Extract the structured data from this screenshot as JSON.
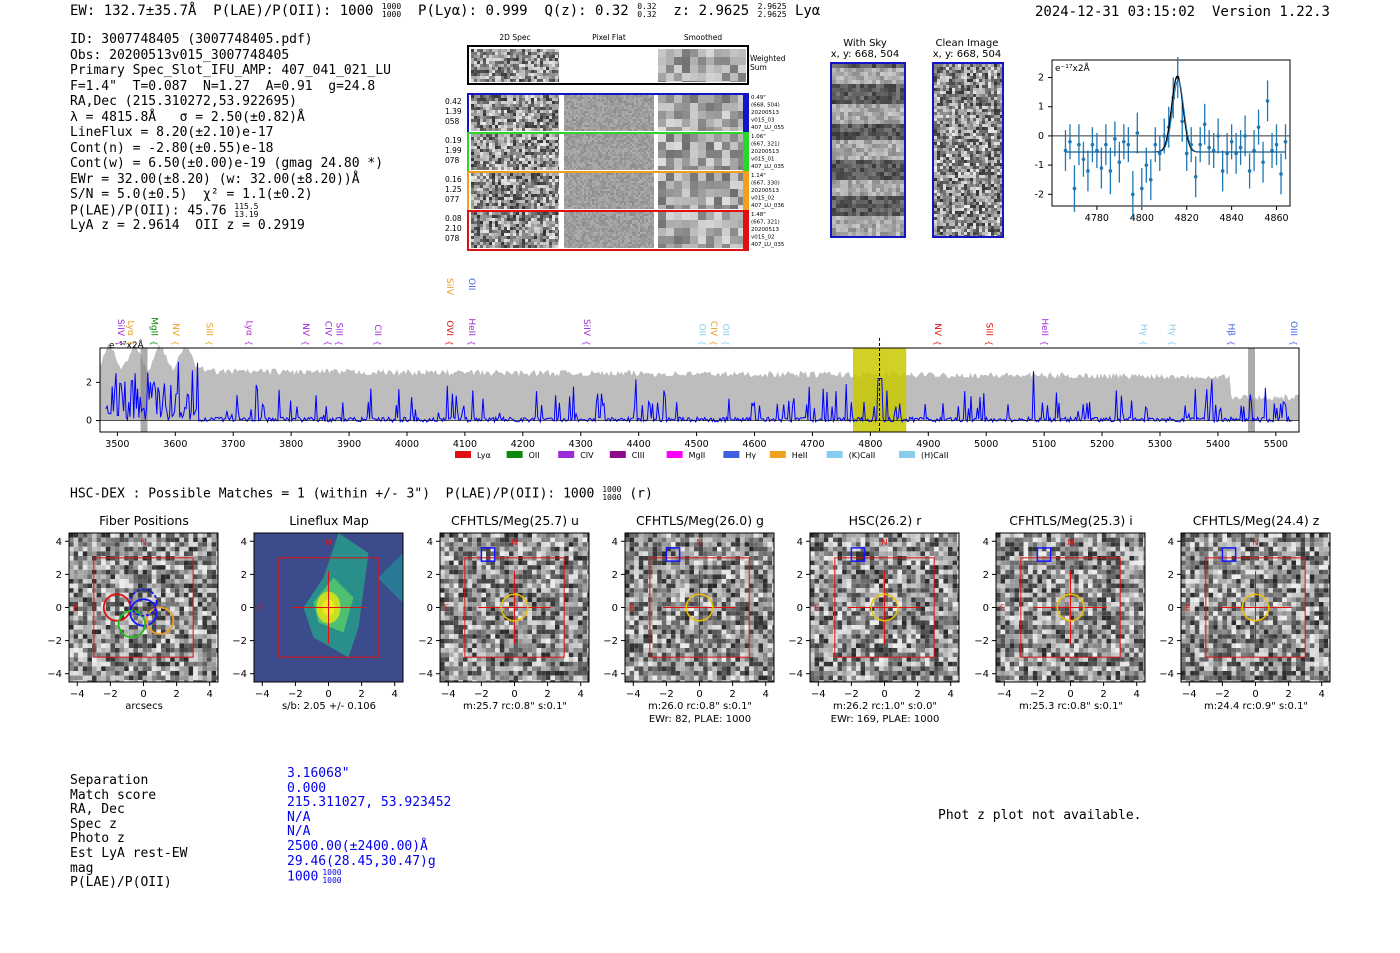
{
  "header": {
    "ew": "EW: 132.7±35.7Å",
    "plae_label": "P(LAE)/P(OII): 1000",
    "plae_hi": "1000",
    "plae_lo": "1000",
    "plya": "P(Lyα): 0.999",
    "qz_label": "Q(z): 0.32",
    "qz_hi": "0.32",
    "qz_lo": "0.32",
    "z_label": "z: 2.9625",
    "z_hi": "2.9625",
    "z_lo": "2.9625",
    "z_line": "Lyα",
    "timestamp": "2024-12-31 03:15:02",
    "version": "Version 1.22.3"
  },
  "info": {
    "id": "ID: 3007748405 (3007748405.pdf)",
    "obs": "Obs: 20200513v015_3007748405",
    "primary": "Primary Spec_Slot_IFU_AMP: 407_041_021_LU",
    "fiber": "F=1.4\"  T=0.087  N=1.27  A=0.91  g=24.8",
    "radec": "RA,Dec (215.310272,53.922695)",
    "lambda": "λ = 4815.8Å   σ = 2.50(±0.82)Å",
    "lineflux": "LineFlux = 8.20(±2.10)e-17",
    "contn": "Cont(n) = -2.80(±0.55)e-18",
    "contw": "Cont(w) = 6.50(±0.00)e-19 (gmag 24.80 *)",
    "ewr": "EWr = 32.00(±8.20) (w: 32.00(±8.20))Å",
    "sn": "S/N = 5.0(±0.5)  χ² = 1.1(±0.2)",
    "plae": "P(LAE)/P(OII): 45.76",
    "plae_hi": "115.5",
    "plae_lo": "13.19",
    "lyaz": "LyA z = 2.9614  OII z = 0.2919"
  },
  "spec2d": {
    "col_labels": [
      "2D Spec",
      "Pixel Flat",
      "Smoothed"
    ],
    "weighted_sum": "Weighted\nSum",
    "rows": [
      {
        "left": [
          "0.42",
          "1.39",
          "058"
        ],
        "right": [
          "0.49\"",
          "(668, 504)",
          "20200513",
          "v015_03",
          "407_LU_055"
        ],
        "color": "#1515c8"
      },
      {
        "left": [
          "0.19",
          "1.99",
          "078"
        ],
        "right": [
          "1.06\"",
          "(667, 321)",
          "20200513",
          "v015_01",
          "407_LU_035"
        ],
        "color": "#2bd62b"
      },
      {
        "left": [
          "0.16",
          "1.25",
          "077"
        ],
        "right": [
          "1.14\"",
          "(667, 330)",
          "20200513",
          "v015_02",
          "407_LU_036"
        ],
        "color": "#f0a020"
      },
      {
        "left": [
          "0.08",
          "2.10",
          "078"
        ],
        "right": [
          "1.48\"",
          "(667, 321)",
          "20200513",
          "v015_02",
          "407_LU_035"
        ],
        "color": "#e01010"
      }
    ]
  },
  "stamps": {
    "with_sky": {
      "title": "With Sky",
      "coords": "x, y: 668, 504"
    },
    "clean": {
      "title": "Clean Image",
      "coords": "x, y: 668, 504"
    }
  },
  "zoom_chart_data": {
    "type": "scatter",
    "ylabel": "e⁻¹⁷x2Å",
    "xlim": [
      4760,
      4866
    ],
    "ylim": [
      -2.4,
      2.6
    ],
    "xticks": [
      4780,
      4800,
      4820,
      4840,
      4860
    ],
    "yticks": [
      -2,
      -1,
      0,
      1,
      2
    ],
    "x": [
      4766,
      4768,
      4770,
      4772,
      4774,
      4776,
      4778,
      4780,
      4782,
      4784,
      4786,
      4788,
      4790,
      4792,
      4794,
      4796,
      4798,
      4800,
      4802,
      4804,
      4806,
      4808,
      4810,
      4812,
      4814,
      4816,
      4818,
      4820,
      4822,
      4824,
      4826,
      4828,
      4830,
      4832,
      4834,
      4836,
      4838,
      4840,
      4842,
      4844,
      4846,
      4848,
      4850,
      4852,
      4854,
      4856,
      4858,
      4860,
      4862,
      4864
    ],
    "values": [
      -0.5,
      -0.2,
      -1.8,
      -0.3,
      -0.8,
      -1.2,
      -0.3,
      -0.5,
      -1.1,
      -0.3,
      -1.2,
      -0.1,
      -0.9,
      -0.2,
      -0.3,
      -2.0,
      0.1,
      -1.8,
      -1.0,
      -1.5,
      -0.3,
      -0.6,
      0.0,
      0.3,
      1.3,
      2.0,
      0.5,
      -0.6,
      -0.3,
      -1.4,
      -0.3,
      0.4,
      -0.4,
      -0.5,
      0.0,
      -1.2,
      -0.6,
      -0.2,
      -0.6,
      -0.4,
      0.0,
      -1.2,
      -0.5,
      0.3,
      -0.9,
      1.2,
      -0.5,
      -0.3,
      -1.3,
      -0.2
    ],
    "errors": [
      0.7,
      0.6,
      0.8,
      0.7,
      0.6,
      0.7,
      0.6,
      0.6,
      0.7,
      0.7,
      0.8,
      0.6,
      0.7,
      0.6,
      0.6,
      0.8,
      0.7,
      0.7,
      0.6,
      0.7,
      0.6,
      0.6,
      0.6,
      0.7,
      0.7,
      0.7,
      0.7,
      0.6,
      0.6,
      0.7,
      0.6,
      0.7,
      0.6,
      0.6,
      0.6,
      0.7,
      0.7,
      0.6,
      0.7,
      0.6,
      0.7,
      0.6,
      0.7,
      0.6,
      0.7,
      0.7,
      0.6,
      0.7,
      0.7,
      0.6
    ],
    "fit": {
      "center": 4815.8,
      "sigma": 2.5,
      "amplitude": 2.6,
      "baseline": -0.55
    }
  },
  "full_spec_chart_data": {
    "type": "line",
    "ylabel": "e⁻¹⁷x2Å",
    "xlim": [
      3470,
      5540
    ],
    "ylim": [
      -0.6,
      3.8
    ],
    "xticks": [
      3500,
      3600,
      3700,
      3800,
      3900,
      4000,
      4100,
      4200,
      4300,
      4400,
      4500,
      4600,
      4700,
      4800,
      4900,
      5000,
      5100,
      5200,
      5300,
      5400,
      5500
    ],
    "yticks": [
      0,
      2
    ],
    "highlight_range": [
      4770,
      4862
    ],
    "marker_line": 4815.8,
    "line_labels": [
      {
        "name": "SiIV",
        "x": 3496,
        "color": "#9b2bd6"
      },
      {
        "name": "Lyα",
        "x": 3513,
        "color": "#e8a020"
      },
      {
        "name": "MgII",
        "x": 3554,
        "color": "#0a8a0a"
      },
      {
        "name": "NV",
        "x": 3591,
        "color": "#e8a020"
      },
      {
        "name": "SiII",
        "x": 3649,
        "color": "#e8a020"
      },
      {
        "name": "Lyα",
        "x": 3718,
        "color": "#b02bd6"
      },
      {
        "name": "NV",
        "x": 3815,
        "color": "#9b2bd6"
      },
      {
        "name": "CIV",
        "x": 3854,
        "color": "#9b2bd6"
      },
      {
        "name": "SiII",
        "x": 3873,
        "color": "#9b2bd6"
      },
      {
        "name": "CII",
        "x": 3940,
        "color": "#9b2bd6"
      },
      {
        "name": "OVI",
        "x": 4064,
        "color": "#e01010"
      },
      {
        "name": "HeII",
        "x": 4102,
        "color": "#9b2bd6"
      },
      {
        "name": "SiIV",
        "x": 4300,
        "color": "#9b2bd6"
      },
      {
        "name": "OII",
        "x": 4500,
        "color": "#88ccee"
      },
      {
        "name": "CIV",
        "x": 4520,
        "color": "#e8a020"
      },
      {
        "name": "OII",
        "x": 4540,
        "color": "#88ccee"
      },
      {
        "name": "NV",
        "x": 4906,
        "color": "#e01010"
      },
      {
        "name": "SiII",
        "x": 4995,
        "color": "#e01010"
      },
      {
        "name": "HeII",
        "x": 5091,
        "color": "#9b2bd6"
      },
      {
        "name": "Hγ",
        "x": 5262,
        "color": "#88ccee"
      },
      {
        "name": "Hγ",
        "x": 5311,
        "color": "#88ccee"
      },
      {
        "name": "Hβ",
        "x": 5413,
        "color": "#4060e0"
      },
      {
        "name": "OIII",
        "x": 5521,
        "color": "#4060e0"
      }
    ],
    "upper_labels": [
      {
        "name": "SiIV",
        "x": 4064,
        "color": "#e8a020"
      },
      {
        "name": "OII",
        "x": 4102,
        "color": "#4060e0"
      }
    ],
    "legend": [
      {
        "name": "Lyα",
        "color": "#e01010"
      },
      {
        "name": "OII",
        "color": "#0a8a0a"
      },
      {
        "name": "CIV",
        "color": "#9b2bd6"
      },
      {
        "name": "CIII",
        "color": "#8a0a8a"
      },
      {
        "name": "MgII",
        "color": "#ff00ff"
      },
      {
        "name": "Hγ",
        "color": "#4060e0"
      },
      {
        "name": "HeII",
        "color": "#f0a020"
      },
      {
        "name": "(K)CaII",
        "color": "#88ccee"
      },
      {
        "name": "(H)CaII",
        "color": "#88ccee"
      }
    ]
  },
  "hsc": {
    "line": "HSC-DEX : Possible Matches = 1 (within +/- 3\")  P(LAE)/P(OII): 1000",
    "hi": "1000",
    "lo": "1000",
    "suffix": "(r)"
  },
  "cutouts": [
    {
      "title": "Fiber Positions",
      "sub": [
        "arcsecs"
      ],
      "type": "fibers"
    },
    {
      "title": "Lineflux Map",
      "sub": [
        "s/b: 2.05 +/- 0.106"
      ],
      "type": "lineflux"
    },
    {
      "title": "CFHTLS/Meg(25.7) u",
      "sub": [
        "m:25.7 rc:0.8\"  s:0.1\""
      ],
      "type": "image"
    },
    {
      "title": "CFHTLS/Meg(26.0) g",
      "sub": [
        "m:26.0 rc:0.8\"  s:0.1\"",
        "EWr: 82, PLAE: 1000"
      ],
      "type": "image"
    },
    {
      "title": "HSC(26.2) r",
      "sub": [
        "m:26.2 rc:1.0\"  s:0.0\"",
        "EWr: 169, PLAE: 1000"
      ],
      "type": "image"
    },
    {
      "title": "CFHTLS/Meg(25.3) i",
      "sub": [
        "m:25.3 rc:0.8\"  s:0.1\""
      ],
      "type": "image"
    },
    {
      "title": "CFHTLS/Meg(24.4) z",
      "sub": [
        "m:24.4 rc:0.9\"  s:0.1\""
      ],
      "type": "image"
    }
  ],
  "cutout_axes": {
    "ticks": [
      "-4",
      "-2",
      "0",
      "2",
      "4"
    ],
    "n_label": "N",
    "e_label": "E"
  },
  "match": {
    "labels": [
      "Separation",
      "Match score",
      "RA, Dec",
      "Spec z",
      "Photo z",
      "Est LyA rest-EW",
      "mag",
      "P(LAE)/P(OII)"
    ],
    "values": [
      "3.16068\"",
      "0.000",
      "215.311027, 53.923452",
      "N/A",
      "N/A",
      "2500.00(±2400.00)Å",
      "29.46(28.45,30.47)g",
      "1000"
    ],
    "plae_hi": "1000",
    "plae_lo": "1000"
  },
  "photz": "Phot z plot not available."
}
